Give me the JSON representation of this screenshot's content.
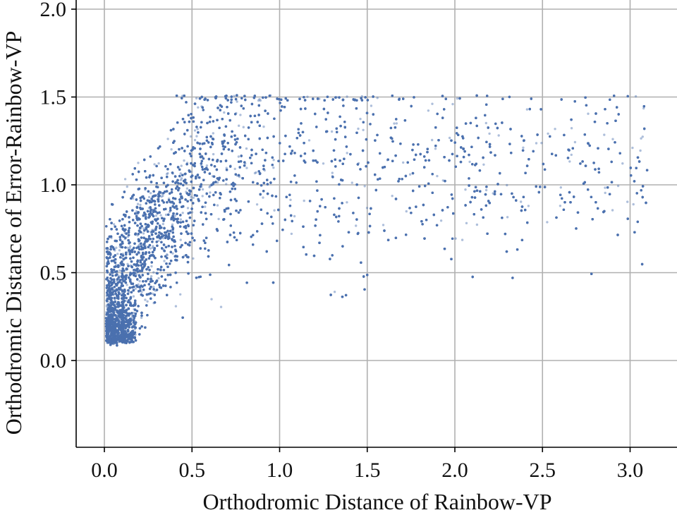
{
  "chart_data": {
    "type": "scatter",
    "title": "",
    "xlabel": "Orthodromic Distance of Rainbow-VP",
    "ylabel": "Orthodromic Distance of Error-Rainbow-VP",
    "xlim": [
      -0.15,
      3.2
    ],
    "ylim": [
      -0.5,
      2.0
    ],
    "x_ticks": [
      "0.0",
      "0.5",
      "1.0",
      "1.5",
      "2.0",
      "2.5",
      "3.0"
    ],
    "y_ticks": [
      "0.0",
      "0.5",
      "1.0",
      "1.5",
      "2.0"
    ],
    "grid": true,
    "point_color": "#4c72b0",
    "point_alpha": 0.45,
    "series": [
      {
        "values_described_as_density": true,
        "point_count_rendered": 18000,
        "clusters": [
          {
            "x_range": [
              0.0,
              0.15
            ],
            "y_range": [
              0.08,
              0.35
            ],
            "weight": 0.2
          },
          {
            "x_range": [
              0.05,
              0.45
            ],
            "y_range": [
              0.1,
              1.1
            ],
            "weight": 0.25
          },
          {
            "x_range": [
              0.15,
              1.1
            ],
            "y_range": [
              0.4,
              1.5
            ],
            "weight": 0.33
          },
          {
            "x_range": [
              0.8,
              2.2
            ],
            "y_range": [
              0.3,
              1.5
            ],
            "weight": 0.15
          },
          {
            "x_range": [
              1.8,
              3.1
            ],
            "y_range": [
              0.4,
              1.5
            ],
            "weight": 0.07
          }
        ]
      }
    ]
  }
}
